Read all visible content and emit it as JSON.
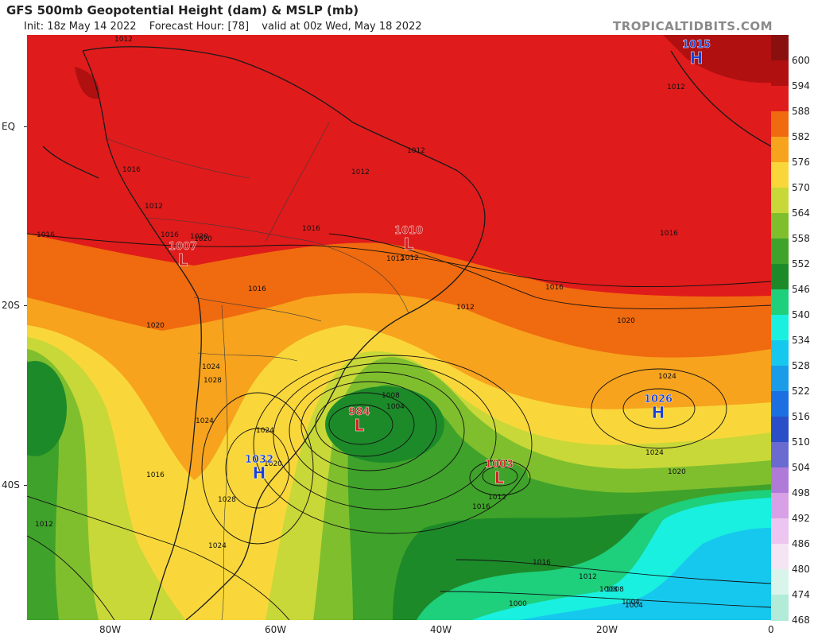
{
  "header": {
    "title": "GFS 500mb Geopotential Height (dam) & MSLP (mb)",
    "init": "Init: 18z May 14 2022",
    "forecast_hour": "Forecast Hour: [78]",
    "valid": "valid at 00z Wed, May 18 2022",
    "brand": "TROPICALTIDBITS.COM"
  },
  "axes": {
    "lat_labels": [
      "EQ",
      "20S",
      "40S"
    ],
    "lon_labels": [
      "80W",
      "60W",
      "40W",
      "20W",
      "0"
    ]
  },
  "colorbar": {
    "levels": [
      "600",
      "594",
      "588",
      "582",
      "576",
      "570",
      "564",
      "558",
      "552",
      "546",
      "540",
      "534",
      "528",
      "522",
      "516",
      "510",
      "504",
      "498",
      "492",
      "486",
      "480",
      "474",
      "468"
    ],
    "colors": {
      "600": "#8a1010",
      "594": "#b01010",
      "588": "#e01b1b",
      "582": "#f06a0f",
      "576": "#f7a31d",
      "570": "#f9d73a",
      "564": "#c8d838",
      "558": "#7fbf2e",
      "552": "#3fa22a",
      "546": "#1d8a2a",
      "540": "#1ecf7c",
      "534": "#19f0e0",
      "528": "#17c8ee",
      "522": "#1a9ce8",
      "516": "#1b6fe0",
      "510": "#2a4ec8",
      "504": "#6a6ad0",
      "498": "#b07ad8",
      "492": "#d8a0e6",
      "486": "#ecc6f0",
      "480": "#f4e4f4",
      "474": "#d9f4ea",
      "468": "#b2ecd8"
    }
  },
  "pressure_centers": [
    {
      "type": "H",
      "value": "1015",
      "color": "#1a3fd0"
    },
    {
      "type": "L",
      "value": "1007",
      "color": "#d02020"
    },
    {
      "type": "L",
      "value": "1010",
      "color": "#d02020"
    },
    {
      "type": "L",
      "value": "984",
      "color": "#d02020"
    },
    {
      "type": "L",
      "value": "1003",
      "color": "#d02020"
    },
    {
      "type": "H",
      "value": "1026",
      "color": "#1a3fd0"
    },
    {
      "type": "H",
      "value": "1032",
      "color": "#1a3fd0"
    }
  ],
  "isobar_labels": [
    "1012",
    "1016",
    "1016",
    "1016",
    "1020",
    "1012",
    "1012",
    "1012",
    "1016",
    "1012",
    "1016",
    "1012",
    "1016",
    "1020",
    "1024",
    "1020",
    "1024",
    "1028",
    "1024",
    "1020",
    "1016",
    "1012",
    "1016",
    "1020",
    "1012",
    "1024",
    "1028",
    "1024",
    "1012",
    "1016",
    "1012",
    "1008",
    "1004",
    "1000",
    "1004",
    "1008",
    "1004",
    "1016",
    "1012",
    "1008",
    "1020",
    "1024"
  ]
}
